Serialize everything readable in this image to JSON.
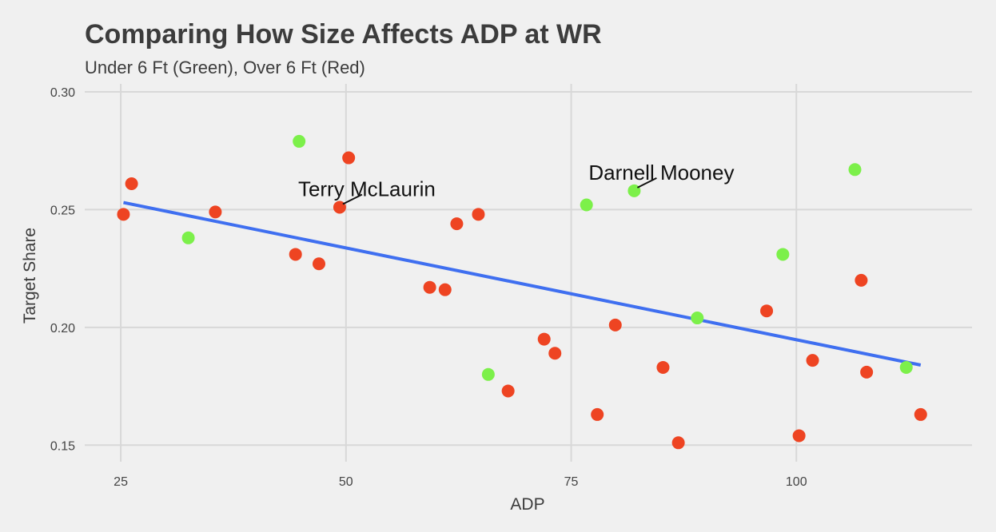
{
  "chart_data": {
    "type": "scatter",
    "title": "Comparing How Size Affects ADP at WR",
    "subtitle": "Under 6 Ft (Green), Over 6 Ft (Red)",
    "xlabel": "ADP",
    "ylabel": "Target Share",
    "xlim": [
      21,
      119.5
    ],
    "ylim": [
      0.145,
      0.3
    ],
    "x_ticks": [
      25,
      50,
      75,
      100
    ],
    "y_ticks": [
      0.15,
      0.2,
      0.25,
      0.3
    ],
    "x_tick_labels": [
      "25",
      "50",
      "75",
      "100"
    ],
    "y_tick_labels": [
      "0.15",
      "0.20",
      "0.25",
      "0.30"
    ],
    "grid": true,
    "colors": {
      "under_6ft": "#7cf04a",
      "over_6ft": "#ee4422",
      "trend": "#3f6ff0",
      "background": "#f0f0f0",
      "grid": "#d8d8d8"
    },
    "series": [
      {
        "group": "under_6ft",
        "color": "#7cf04a",
        "points": [
          {
            "x": 32.5,
            "y": 0.238
          },
          {
            "x": 44.8,
            "y": 0.279
          },
          {
            "x": 65.8,
            "y": 0.18
          },
          {
            "x": 76.7,
            "y": 0.252
          },
          {
            "x": 82.0,
            "y": 0.258,
            "label": "Darnell Mooney"
          },
          {
            "x": 89.0,
            "y": 0.204
          },
          {
            "x": 98.5,
            "y": 0.231
          },
          {
            "x": 106.5,
            "y": 0.267
          },
          {
            "x": 112.2,
            "y": 0.183
          }
        ]
      },
      {
        "group": "over_6ft",
        "color": "#ee4422",
        "points": [
          {
            "x": 25.3,
            "y": 0.248
          },
          {
            "x": 26.2,
            "y": 0.261
          },
          {
            "x": 35.5,
            "y": 0.249
          },
          {
            "x": 44.4,
            "y": 0.231
          },
          {
            "x": 47.0,
            "y": 0.227
          },
          {
            "x": 49.3,
            "y": 0.251,
            "label": "Terry McLaurin"
          },
          {
            "x": 50.3,
            "y": 0.272
          },
          {
            "x": 59.3,
            "y": 0.217
          },
          {
            "x": 61.0,
            "y": 0.216
          },
          {
            "x": 62.3,
            "y": 0.244
          },
          {
            "x": 64.7,
            "y": 0.248
          },
          {
            "x": 68.0,
            "y": 0.173
          },
          {
            "x": 72.0,
            "y": 0.195
          },
          {
            "x": 73.2,
            "y": 0.189
          },
          {
            "x": 77.9,
            "y": 0.163
          },
          {
            "x": 79.9,
            "y": 0.201
          },
          {
            "x": 85.2,
            "y": 0.183
          },
          {
            "x": 86.9,
            "y": 0.151
          },
          {
            "x": 96.7,
            "y": 0.207
          },
          {
            "x": 100.3,
            "y": 0.154
          },
          {
            "x": 101.8,
            "y": 0.186
          },
          {
            "x": 107.2,
            "y": 0.22
          },
          {
            "x": 107.8,
            "y": 0.181
          },
          {
            "x": 113.8,
            "y": 0.163
          }
        ]
      }
    ],
    "trendline": {
      "x": [
        25.3,
        113.8
      ],
      "y": [
        0.253,
        0.184
      ]
    },
    "annotations": [
      {
        "text": "Terry McLaurin",
        "point": {
          "x": 49.3,
          "y": 0.251
        }
      },
      {
        "text": "Darnell Mooney",
        "point": {
          "x": 82.0,
          "y": 0.258
        }
      }
    ]
  }
}
